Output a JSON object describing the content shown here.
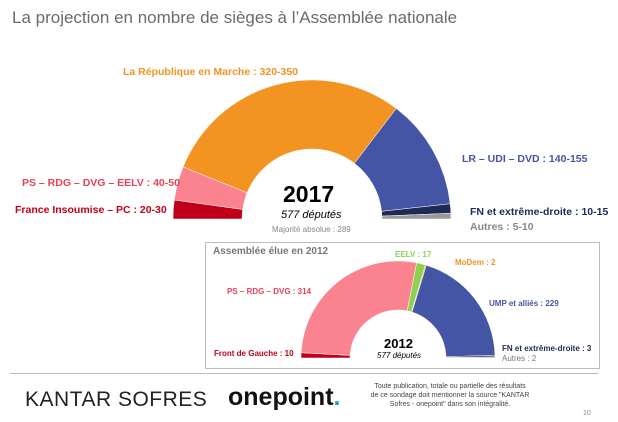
{
  "title": "La projection en nombre de sièges à l’Assemblée nationale",
  "chart_data": [
    {
      "type": "pie",
      "subtype": "half-donut",
      "title": "2017",
      "subtitle": "577 députés",
      "note": "Majorité absolue : 289",
      "series": [
        {
          "name": "France Insoumise – PC",
          "range": [
            20,
            30
          ],
          "label": "France Insoumise – PC : 20-30",
          "color": "#c0001a"
        },
        {
          "name": "PS – RDG – DVG – EELV",
          "range": [
            40,
            50
          ],
          "label": "PS – RDG – DVG – EELV : 40-50",
          "color": "#fb8390"
        },
        {
          "name": "La République en Marche",
          "range": [
            320,
            350
          ],
          "label": "La République en Marche : 320-350",
          "color": "#f39322"
        },
        {
          "name": "LR – UDI – DVD",
          "range": [
            140,
            155
          ],
          "label": "LR – UDI – DVD : 140-155",
          "color": "#4555a6"
        },
        {
          "name": "FN et extrême-droite",
          "range": [
            10,
            15
          ],
          "label": "FN et extrême-droite : 10-15",
          "color": "#1f2a55"
        },
        {
          "name": "Autres",
          "range": [
            5,
            10
          ],
          "label": "Autres : 5-10",
          "color": "#9a9a9a"
        }
      ]
    },
    {
      "type": "pie",
      "subtype": "half-donut",
      "title": "2012",
      "subtitle": "577 députés",
      "header": "Assemblée élue en 2012",
      "series": [
        {
          "name": "Front de Gauche",
          "value": 10,
          "label": "Front de Gauche : 10",
          "color": "#c0001a"
        },
        {
          "name": "PS – RDG – DVG",
          "value": 314,
          "label": "PS – RDG – DVG : 314",
          "color": "#fb8390"
        },
        {
          "name": "EELV",
          "value": 17,
          "label": "EELV : 17",
          "color": "#8ed14f"
        },
        {
          "name": "MoDem",
          "value": 2,
          "label": "MoDem : 2",
          "color": "#f39322"
        },
        {
          "name": "UMP et alliés",
          "value": 229,
          "label": "UMP et alliés : 229",
          "color": "#4555a6"
        },
        {
          "name": "FN et extrême-droite",
          "value": 3,
          "label": "FN et extrême-droite : 3",
          "color": "#1f2a55"
        },
        {
          "name": "Autres",
          "value": 2,
          "label": "Autres : 2",
          "color": "#9a9a9a"
        }
      ]
    }
  ],
  "footer": {
    "logo1": "KANTAR SOFRES",
    "logo2": "onepoint",
    "note": "Toute publication, totale ou partielle des résultats de ce sondage doit mentionner la source \"KANTAR Sofres - onepoint\" dans son intégralité.",
    "page": "10"
  }
}
